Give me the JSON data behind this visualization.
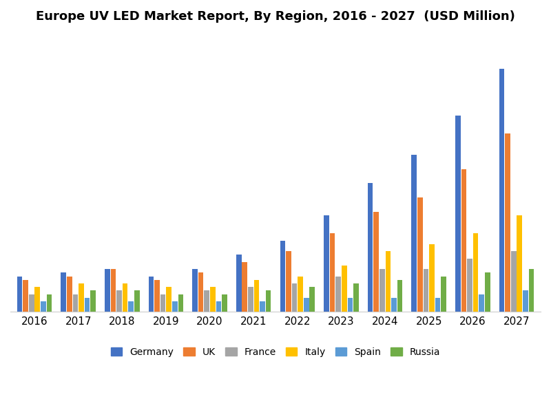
{
  "title": "Europe UV LED Market Report, By Region, 2016 - 2027  (USD Million)",
  "years": [
    2016,
    2017,
    2018,
    2019,
    2020,
    2021,
    2022,
    2023,
    2024,
    2025,
    2026,
    2027
  ],
  "series": {
    "Germany": [
      10,
      11,
      12,
      10,
      12,
      16,
      20,
      27,
      36,
      44,
      55,
      68
    ],
    "UK": [
      9,
      10,
      12,
      9,
      11,
      14,
      17,
      22,
      28,
      32,
      40,
      50
    ],
    "France": [
      5,
      5,
      6,
      5,
      6,
      7,
      8,
      10,
      12,
      12,
      15,
      17
    ],
    "Italy": [
      7,
      8,
      8,
      7,
      7,
      9,
      10,
      13,
      17,
      19,
      22,
      27
    ],
    "Spain": [
      3,
      4,
      3,
      3,
      3,
      3,
      4,
      4,
      4,
      4,
      5,
      6
    ],
    "Russia": [
      5,
      6,
      6,
      5,
      5,
      6,
      7,
      8,
      9,
      10,
      11,
      12
    ]
  },
  "colors": {
    "Germany": "#4472C4",
    "UK": "#ED7D31",
    "France": "#A5A5A5",
    "Italy": "#FFC000",
    "Spain": "#5B9BD5",
    "Russia": "#70AD47"
  },
  "background_color": "#FFFFFF",
  "ylim": [
    0,
    75
  ],
  "title_fontsize": 13,
  "legend_fontsize": 10,
  "tick_fontsize": 11,
  "bar_width": 0.12,
  "bar_spacing": 0.015
}
